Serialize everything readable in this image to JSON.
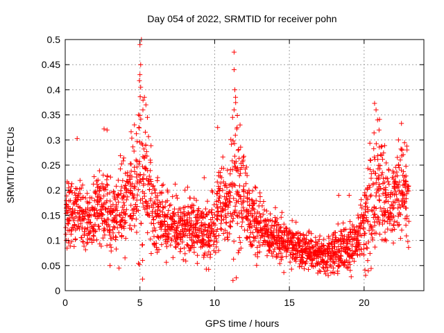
{
  "chart_data": {
    "type": "scatter",
    "title": "Day 054 of 2022, SRMTID for receiver pohn",
    "xlabel": "GPS time / hours",
    "ylabel": "SRMTID / TECUs",
    "xlim": [
      0,
      24
    ],
    "ylim": [
      0,
      0.5
    ],
    "xticks": [
      0,
      5,
      10,
      15,
      20
    ],
    "xtick_labels": [
      "0",
      "5",
      "10",
      "15",
      "20"
    ],
    "yticks": [
      0,
      0.05,
      0.1,
      0.15,
      0.2,
      0.25,
      0.3,
      0.35,
      0.4,
      0.45,
      0.5
    ],
    "ytick_labels": [
      "0",
      "0.05",
      "0.1",
      "0.15",
      "0.2",
      "0.25",
      "0.3",
      "0.35",
      "0.4",
      "0.45",
      "0.5"
    ],
    "grid": true,
    "marker": "+",
    "color": "#ff0000",
    "series": [
      {
        "name": "SRMTID",
        "x": [
          0.0,
          0.2,
          0.4,
          0.6,
          0.8,
          1.0,
          1.2,
          1.4,
          1.6,
          1.8,
          2.0,
          2.2,
          2.4,
          2.6,
          2.8,
          3.0,
          3.2,
          3.4,
          3.6,
          3.8,
          4.0,
          4.2,
          4.4,
          4.6,
          4.8,
          5.0,
          5.2,
          5.4,
          5.6,
          5.8,
          6.0,
          6.2,
          6.4,
          6.6,
          6.8,
          7.0,
          7.2,
          7.4,
          7.6,
          7.8,
          8.0,
          8.2,
          8.4,
          8.6,
          8.8,
          9.0,
          9.2,
          9.4,
          9.6,
          9.8,
          10.0,
          10.2,
          10.4,
          10.6,
          10.8,
          11.0,
          11.2,
          11.4,
          11.6,
          11.8,
          12.0,
          12.2,
          12.4,
          12.6,
          12.8,
          13.0,
          13.2,
          13.4,
          13.6,
          13.8,
          14.0,
          14.2,
          14.4,
          14.6,
          14.8,
          15.0,
          15.2,
          15.4,
          15.6,
          15.8,
          16.0,
          16.2,
          16.4,
          16.6,
          16.8,
          17.0,
          17.2,
          17.4,
          17.6,
          17.8,
          18.0,
          18.2,
          18.4,
          18.6,
          18.8,
          19.0,
          19.2,
          19.4,
          19.6,
          19.8,
          20.0,
          20.2,
          20.4,
          20.6,
          20.8,
          21.0,
          21.2,
          21.4,
          21.6,
          21.8,
          22.0,
          22.2,
          22.4,
          22.6,
          22.8
        ],
        "median": [
          0.145,
          0.15,
          0.145,
          0.15,
          0.16,
          0.15,
          0.14,
          0.13,
          0.14,
          0.15,
          0.16,
          0.17,
          0.165,
          0.16,
          0.155,
          0.15,
          0.15,
          0.155,
          0.16,
          0.17,
          0.175,
          0.18,
          0.18,
          0.2,
          0.22,
          0.24,
          0.22,
          0.2,
          0.18,
          0.16,
          0.15,
          0.14,
          0.14,
          0.135,
          0.13,
          0.13,
          0.13,
          0.125,
          0.13,
          0.13,
          0.13,
          0.125,
          0.12,
          0.12,
          0.115,
          0.115,
          0.11,
          0.11,
          0.115,
          0.12,
          0.15,
          0.18,
          0.18,
          0.17,
          0.175,
          0.19,
          0.21,
          0.21,
          0.2,
          0.18,
          0.16,
          0.15,
          0.14,
          0.135,
          0.13,
          0.125,
          0.12,
          0.115,
          0.11,
          0.11,
          0.105,
          0.1,
          0.1,
          0.1,
          0.095,
          0.095,
          0.09,
          0.09,
          0.085,
          0.085,
          0.08,
          0.08,
          0.075,
          0.075,
          0.072,
          0.07,
          0.07,
          0.07,
          0.072,
          0.075,
          0.08,
          0.08,
          0.085,
          0.085,
          0.09,
          0.09,
          0.095,
          0.1,
          0.11,
          0.12,
          0.14,
          0.16,
          0.18,
          0.2,
          0.21,
          0.2,
          0.19,
          0.18,
          0.17,
          0.17,
          0.18,
          0.19,
          0.2,
          0.2,
          0.19
        ],
        "spread": [
          0.04,
          0.04,
          0.04,
          0.045,
          0.045,
          0.04,
          0.035,
          0.035,
          0.04,
          0.045,
          0.05,
          0.05,
          0.05,
          0.05,
          0.045,
          0.045,
          0.045,
          0.045,
          0.05,
          0.05,
          0.055,
          0.06,
          0.06,
          0.07,
          0.08,
          0.1,
          0.09,
          0.07,
          0.06,
          0.05,
          0.045,
          0.04,
          0.04,
          0.04,
          0.04,
          0.04,
          0.04,
          0.035,
          0.04,
          0.04,
          0.04,
          0.035,
          0.035,
          0.035,
          0.035,
          0.035,
          0.035,
          0.035,
          0.035,
          0.04,
          0.05,
          0.06,
          0.06,
          0.05,
          0.06,
          0.08,
          0.08,
          0.08,
          0.07,
          0.06,
          0.05,
          0.045,
          0.04,
          0.035,
          0.035,
          0.035,
          0.03,
          0.03,
          0.03,
          0.03,
          0.03,
          0.03,
          0.03,
          0.03,
          0.025,
          0.025,
          0.025,
          0.025,
          0.025,
          0.025,
          0.02,
          0.02,
          0.02,
          0.02,
          0.02,
          0.02,
          0.02,
          0.02,
          0.02,
          0.02,
          0.025,
          0.025,
          0.025,
          0.025,
          0.025,
          0.03,
          0.03,
          0.03,
          0.035,
          0.04,
          0.05,
          0.06,
          0.07,
          0.08,
          0.08,
          0.07,
          0.06,
          0.055,
          0.05,
          0.05,
          0.055,
          0.06,
          0.06,
          0.06,
          0.06
        ],
        "peaks": [
          {
            "x": 5.0,
            "y": 0.49
          },
          {
            "x": 5.1,
            "y": 0.5
          },
          {
            "x": 5.05,
            "y": 0.45
          },
          {
            "x": 5.0,
            "y": 0.43
          },
          {
            "x": 5.05,
            "y": 0.405
          },
          {
            "x": 5.3,
            "y": 0.385
          },
          {
            "x": 5.4,
            "y": 0.37
          },
          {
            "x": 5.2,
            "y": 0.36
          },
          {
            "x": 4.9,
            "y": 0.35
          },
          {
            "x": 5.5,
            "y": 0.345
          },
          {
            "x": 11.3,
            "y": 0.475
          },
          {
            "x": 11.3,
            "y": 0.44
          },
          {
            "x": 11.35,
            "y": 0.4
          },
          {
            "x": 11.4,
            "y": 0.385
          },
          {
            "x": 11.3,
            "y": 0.36
          },
          {
            "x": 11.2,
            "y": 0.345
          },
          {
            "x": 11.5,
            "y": 0.325
          },
          {
            "x": 11.7,
            "y": 0.33
          },
          {
            "x": 20.7,
            "y": 0.373
          },
          {
            "x": 20.8,
            "y": 0.36
          },
          {
            "x": 20.9,
            "y": 0.34
          },
          {
            "x": 21.0,
            "y": 0.32
          },
          {
            "x": 22.5,
            "y": 0.333
          },
          {
            "x": 22.3,
            "y": 0.3
          },
          {
            "x": 0.8,
            "y": 0.303
          },
          {
            "x": 2.6,
            "y": 0.322
          },
          {
            "x": 2.8,
            "y": 0.32
          },
          {
            "x": 10.2,
            "y": 0.325
          },
          {
            "x": 9.3,
            "y": 0.225
          },
          {
            "x": 17.6,
            "y": 0.03
          },
          {
            "x": 18.0,
            "y": 0.035
          },
          {
            "x": 16.9,
            "y": 0.035
          },
          {
            "x": 19.0,
            "y": 0.19
          },
          {
            "x": 18.3,
            "y": 0.19
          },
          {
            "x": 3.0,
            "y": 0.05
          },
          {
            "x": 3.6,
            "y": 0.045
          }
        ],
        "points_per_bin": 20
      }
    ]
  }
}
